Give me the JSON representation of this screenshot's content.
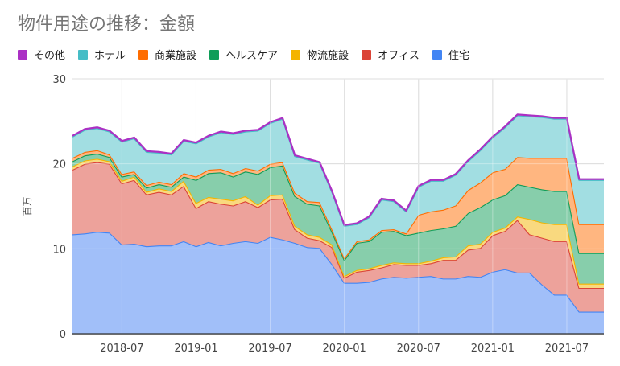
{
  "chart_data": {
    "type": "area",
    "stacked": true,
    "title": "物件用途の推移：金額",
    "ylabel": "百万",
    "ylim": [
      0,
      30
    ],
    "yticks": [
      "0",
      "10",
      "20",
      "30"
    ],
    "grid": true,
    "legend_position": "top",
    "x_ticks": [
      {
        "label": "2018-07",
        "month": 4
      },
      {
        "label": "2019-01",
        "month": 10
      },
      {
        "label": "2019-07",
        "month": 16
      },
      {
        "label": "2020-01",
        "month": 22
      },
      {
        "label": "2020-07",
        "month": 28
      },
      {
        "label": "2021-01",
        "month": 34
      },
      {
        "label": "2021-07",
        "month": 40
      }
    ],
    "x_months": [
      "2018-03",
      "2018-04",
      "2018-05",
      "2018-06",
      "2018-07",
      "2018-08",
      "2018-09",
      "2018-10",
      "2018-11",
      "2018-12",
      "2019-01",
      "2019-02",
      "2019-03",
      "2019-04",
      "2019-05",
      "2019-06",
      "2019-07",
      "2019-08",
      "2019-09",
      "2019-10",
      "2019-11",
      "2019-12",
      "2020-01",
      "2020-02",
      "2020-03",
      "2020-04",
      "2020-05",
      "2020-06",
      "2020-07",
      "2020-08",
      "2020-09",
      "2020-10",
      "2020-11",
      "2020-12",
      "2021-01",
      "2021-02",
      "2021-03",
      "2021-04",
      "2021-05",
      "2021-06",
      "2021-07",
      "2021-08",
      "2021-09",
      "2021-10"
    ],
    "legend_order": [
      "その他",
      "ホテル",
      "商業施設",
      "ヘルスケア",
      "物流施設",
      "オフィス",
      "住宅"
    ],
    "series": [
      {
        "name": "住宅",
        "color": "#4285f4",
        "fill": "#a1bff9",
        "values": [
          11.7,
          11.8,
          12.0,
          11.9,
          10.5,
          10.6,
          10.3,
          10.4,
          10.4,
          10.9,
          10.3,
          10.8,
          10.4,
          10.7,
          10.9,
          10.7,
          11.4,
          11.1,
          10.7,
          10.2,
          10.1,
          8.2,
          6.0,
          6.0,
          6.1,
          6.5,
          6.7,
          6.6,
          6.7,
          6.8,
          6.5,
          6.5,
          6.8,
          6.7,
          7.3,
          7.6,
          7.2,
          7.2,
          5.8,
          4.6,
          4.6,
          2.6,
          2.6,
          2.6
        ]
      },
      {
        "name": "オフィス",
        "color": "#db4437",
        "fill": "#eda29b",
        "values": [
          7.6,
          8.2,
          8.2,
          8.1,
          7.2,
          7.5,
          6.1,
          6.3,
          6.0,
          6.5,
          4.5,
          4.8,
          4.9,
          4.4,
          4.7,
          4.2,
          4.4,
          4.8,
          1.6,
          1.1,
          0.9,
          2.0,
          0.6,
          1.3,
          1.4,
          1.3,
          1.5,
          1.5,
          1.4,
          1.5,
          2.2,
          2.2,
          3.1,
          3.4,
          4.3,
          4.5,
          6.2,
          4.5,
          5.5,
          6.3,
          6.3,
          2.8,
          2.8,
          2.8
        ]
      },
      {
        "name": "物流施設",
        "color": "#f4b400",
        "fill": "#f9d97f",
        "values": [
          0.4,
          0.4,
          0.4,
          0.3,
          0.3,
          0.4,
          0.3,
          0.4,
          0.4,
          0.6,
          0.6,
          0.5,
          0.6,
          0.6,
          0.6,
          0.3,
          0.5,
          0.5,
          0.4,
          0.4,
          0.4,
          0.3,
          0.2,
          0.2,
          0.2,
          0.3,
          0.2,
          0.2,
          0.2,
          0.3,
          0.3,
          0.4,
          0.5,
          0.5,
          0.4,
          0.4,
          0.4,
          1.8,
          1.8,
          2.0,
          2.0,
          0.5,
          0.5,
          0.5
        ]
      },
      {
        "name": "ヘルスケア",
        "color": "#0f9d58",
        "fill": "#87ce ab",
        "values": [
          0.6,
          0.6,
          0.6,
          0.5,
          0.5,
          0.3,
          0.5,
          0.5,
          0.5,
          0.5,
          2.7,
          2.8,
          3.1,
          2.8,
          2.9,
          3.6,
          3.3,
          3.4,
          3.5,
          3.6,
          3.7,
          1.5,
          1.9,
          3.2,
          3.2,
          3.9,
          3.7,
          3.3,
          3.6,
          3.6,
          3.4,
          3.6,
          3.8,
          4.3,
          3.8,
          3.8,
          3.8,
          3.8,
          3.9,
          3.9,
          3.9,
          3.6,
          3.6,
          3.6
        ]
      },
      {
        "name": "商業施設",
        "color": "#ff6d00",
        "fill": "#ffb680",
        "values": [
          0.4,
          0.4,
          0.4,
          0.3,
          0.3,
          0.3,
          0.3,
          0.3,
          0.3,
          0.4,
          0.4,
          0.4,
          0.4,
          0.4,
          0.4,
          0.4,
          0.4,
          0.4,
          0.4,
          0.3,
          0.4,
          0.3,
          0.2,
          0.2,
          0.2,
          0.2,
          0.2,
          0.2,
          2.1,
          2.2,
          2.2,
          2.4,
          2.7,
          2.9,
          3.2,
          3.1,
          3.2,
          3.4,
          3.7,
          3.9,
          3.9,
          3.4,
          3.4,
          3.4
        ]
      },
      {
        "name": "ホテル",
        "color": "#46bdc6",
        "fill": "#a2dee2",
        "values": [
          2.5,
          2.6,
          2.6,
          2.7,
          3.8,
          3.9,
          3.9,
          3.4,
          3.5,
          3.8,
          3.9,
          3.9,
          4.3,
          4.6,
          4.3,
          4.7,
          4.8,
          5.1,
          4.3,
          4.9,
          4.6,
          4.4,
          3.8,
          2.0,
          2.6,
          3.6,
          3.3,
          2.6,
          3.3,
          3.6,
          3.4,
          3.6,
          3.4,
          3.8,
          4.1,
          4.9,
          4.9,
          4.9,
          4.8,
          4.6,
          4.6,
          5.2,
          5.2,
          5.2
        ]
      },
      {
        "name": "その他",
        "color": "#ab30c4",
        "fill": "#d597e1",
        "values": [
          0.1,
          0.1,
          0.1,
          0.1,
          0.1,
          0.1,
          0.1,
          0.1,
          0.1,
          0.1,
          0.1,
          0.1,
          0.1,
          0.1,
          0.1,
          0.1,
          0.1,
          0.1,
          0.1,
          0.1,
          0.1,
          0.1,
          0.1,
          0.1,
          0.1,
          0.1,
          0.1,
          0.1,
          0.1,
          0.1,
          0.1,
          0.1,
          0.1,
          0.1,
          0.1,
          0.1,
          0.1,
          0.1,
          0.1,
          0.1,
          0.1,
          0.1,
          0.1,
          0.1
        ]
      }
    ]
  }
}
